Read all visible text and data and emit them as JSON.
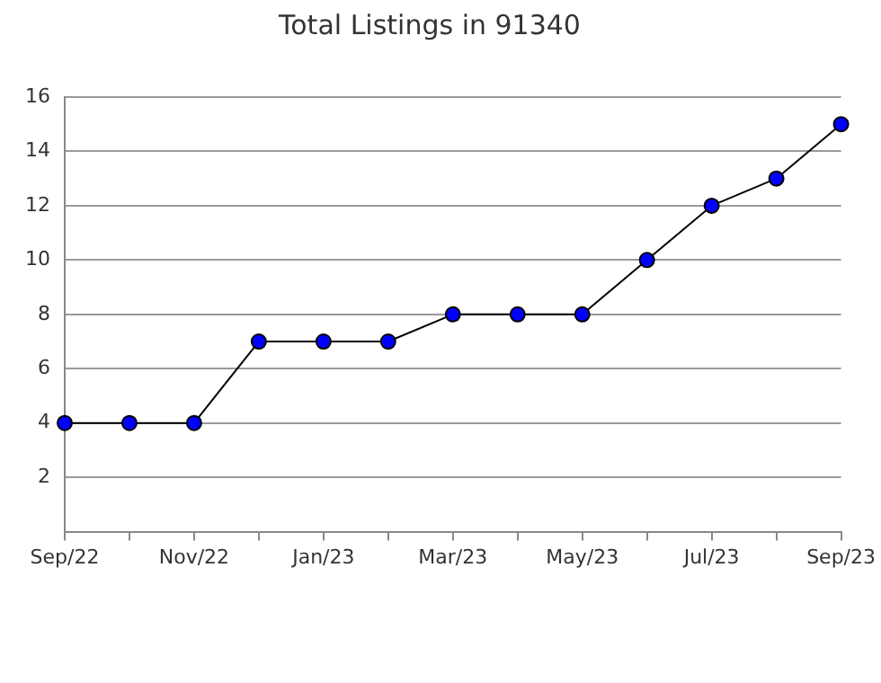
{
  "chart_data": {
    "type": "line",
    "title": "Total Listings in 91340",
    "categories": [
      "Sep/22",
      null,
      "Nov/22",
      null,
      "Jan/23",
      null,
      "Mar/23",
      null,
      "May/23",
      null,
      "Jul/23",
      null,
      "Sep/23"
    ],
    "series": [
      {
        "color": "#0000ff",
        "values": [
          4,
          4,
          4,
          7,
          7,
          7,
          8,
          8,
          8,
          10,
          12,
          13,
          15
        ]
      }
    ],
    "ylim": [
      0,
      16
    ],
    "yticks": [
      2,
      4,
      6,
      8,
      10,
      12,
      14,
      16
    ],
    "grid": "y",
    "legend": false,
    "marker": "circle",
    "line_style": "solid"
  }
}
